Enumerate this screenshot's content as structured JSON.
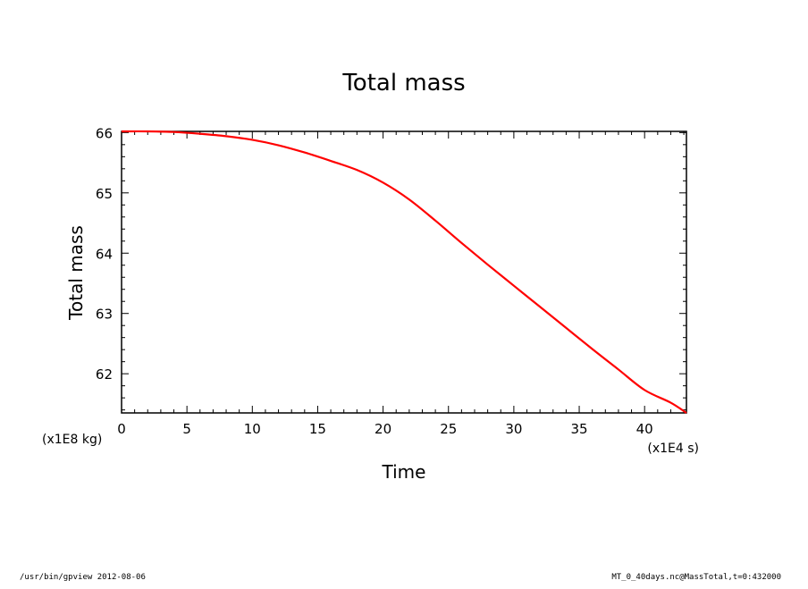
{
  "chart_data": {
    "type": "line",
    "title": "Total mass",
    "xlabel": "Time",
    "ylabel": "Total mass",
    "x_unit": "(x1E4 s)",
    "y_unit": "(x1E8 kg)",
    "xlim": [
      0,
      43.2
    ],
    "ylim": [
      61.35,
      66.02
    ],
    "x_ticks": [
      0,
      5,
      10,
      15,
      20,
      25,
      30,
      35,
      40
    ],
    "x_tick_labels": [
      "0",
      "5",
      "10",
      "15",
      "20",
      "25",
      "30",
      "35",
      "40"
    ],
    "y_ticks": [
      62,
      63,
      64,
      65,
      66
    ],
    "y_tick_labels": [
      "62",
      "63",
      "64",
      "65",
      "66"
    ],
    "grid": false,
    "series": [
      {
        "color": "#ff0000",
        "x": [
          0,
          2,
          4,
          6,
          8,
          10,
          12,
          14,
          16,
          18,
          20,
          22,
          24,
          26,
          28,
          30,
          32,
          34,
          36,
          38,
          40,
          42,
          43.2
        ],
        "y": [
          66.02,
          66.02,
          66.01,
          65.98,
          65.94,
          65.88,
          65.79,
          65.67,
          65.53,
          65.38,
          65.17,
          64.89,
          64.54,
          64.17,
          63.81,
          63.46,
          63.11,
          62.76,
          62.41,
          62.07,
          61.73,
          61.52,
          61.35
        ]
      }
    ]
  },
  "footer": {
    "left": "/usr/bin/gpview  2012-08-06",
    "right": "MT_0_40days.nc@MassTotal,t=0:432000"
  }
}
